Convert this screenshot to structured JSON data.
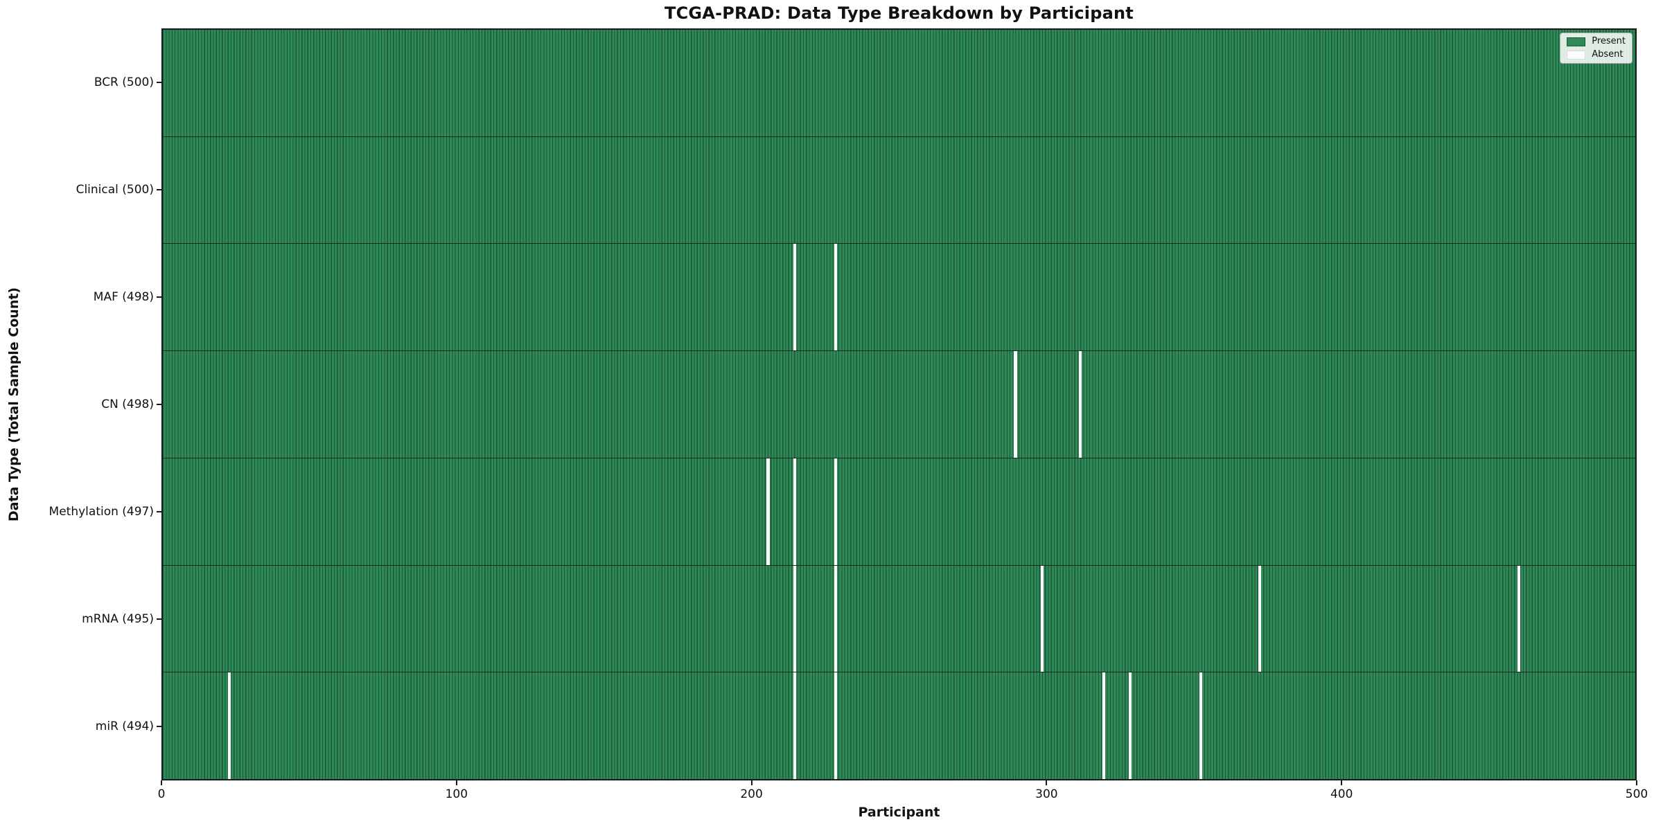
{
  "chart_data": {
    "type": "heatmap",
    "title": "TCGA-PRAD: Data Type Breakdown by Participant",
    "xlabel": "Participant",
    "ylabel": "Data Type (Total Sample Count)",
    "xlim": [
      0,
      500
    ],
    "n_participants": 500,
    "x_ticks": [
      0,
      100,
      200,
      300,
      400,
      500
    ],
    "grid": false,
    "legend": {
      "position": "upper right",
      "entries": [
        {
          "label": "Present",
          "color": "#2e8b57"
        },
        {
          "label": "Absent",
          "color": "#ffffff"
        }
      ]
    },
    "colors": {
      "present_fill": "#2e8b57",
      "bar_edge": "#1c5435",
      "absent_fill": "#ffffff",
      "row_divider": "#1a1a1a"
    },
    "rows": [
      {
        "name": "bcr",
        "label": "BCR (500)",
        "total": 500,
        "absent_participants": []
      },
      {
        "name": "clinical",
        "label": "Clinical (500)",
        "total": 500,
        "absent_participants": []
      },
      {
        "name": "maf",
        "label": "MAF (498)",
        "total": 498,
        "absent_participants": [
          214,
          228
        ]
      },
      {
        "name": "cn",
        "label": "CN (498)",
        "total": 498,
        "absent_participants": [
          289,
          311
        ]
      },
      {
        "name": "methylation",
        "label": "Methylation (497)",
        "total": 497,
        "absent_participants": [
          205,
          214,
          228
        ]
      },
      {
        "name": "mrna",
        "label": "mRNA (495)",
        "total": 495,
        "absent_participants": [
          214,
          228,
          298,
          372,
          460
        ]
      },
      {
        "name": "mir",
        "label": "miR (494)",
        "total": 494,
        "absent_participants": [
          22,
          214,
          228,
          319,
          328,
          352
        ]
      }
    ]
  }
}
